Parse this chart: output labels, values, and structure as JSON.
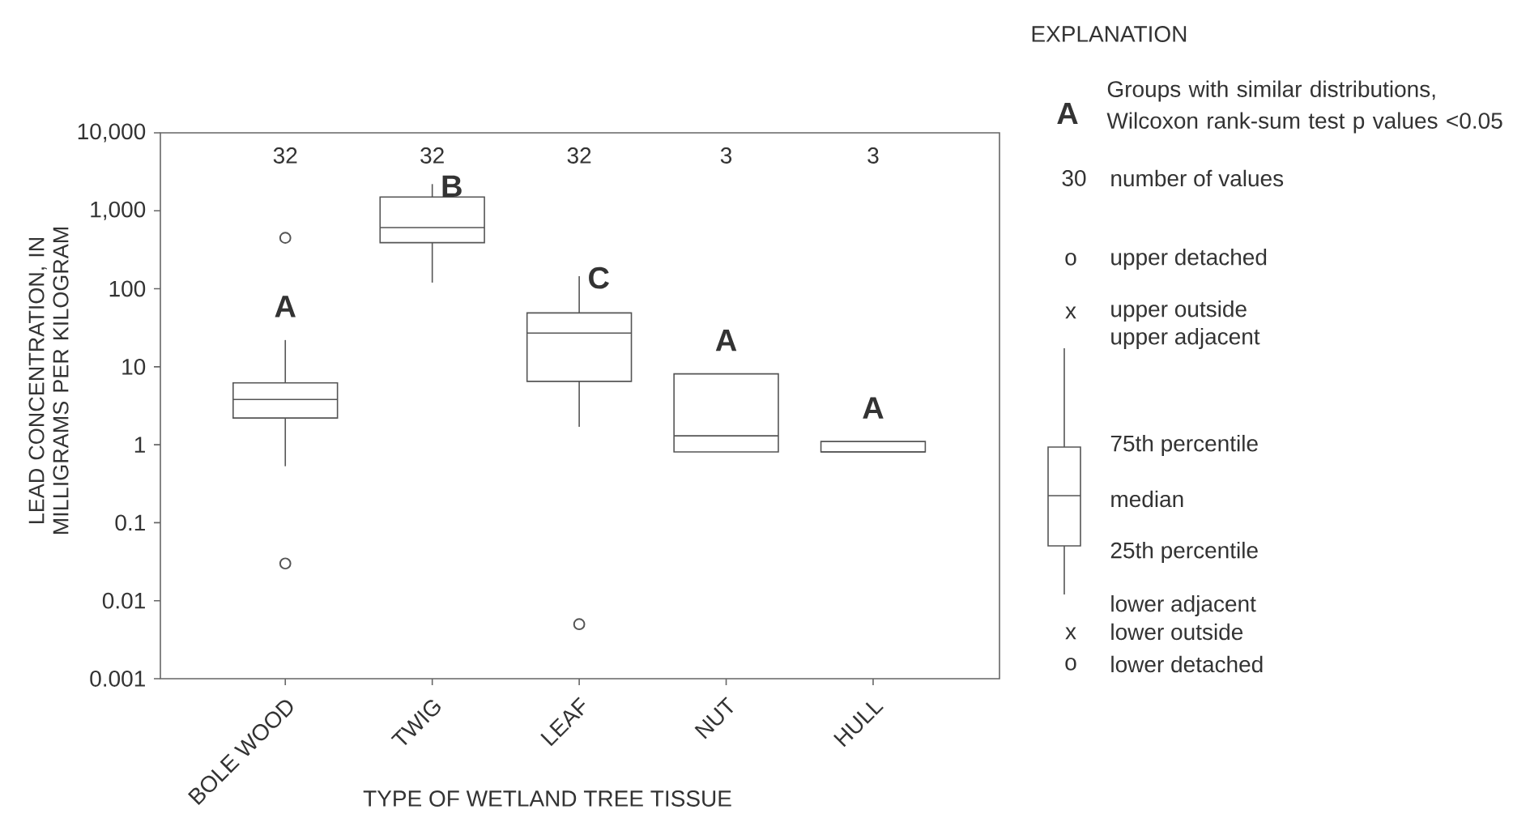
{
  "chart_data": {
    "type": "box",
    "xlabel": "TYPE OF WETLAND TREE TISSUE",
    "ylabel": "LEAD CONCENTRATION, IN MILLIGRAMS PER KILOGRAM",
    "categories": [
      "BOLE WOOD",
      "TWIG",
      "LEAF",
      "NUT",
      "HULL"
    ],
    "color": "#555555",
    "marker": "circle",
    "log": "y",
    "boxes": [
      {
        "low": 0.53,
        "q1": 2.2,
        "median": 3.8,
        "q3": 6.2,
        "high": 22,
        "outliers": [
          450,
          0.03
        ]
      },
      {
        "low": 120,
        "q1": 390,
        "median": 610,
        "q3": 1500,
        "high": 2200
      },
      {
        "low": 1.7,
        "q1": 6.5,
        "median": 27,
        "q3": 49,
        "high": 145,
        "outliers": [
          0.005
        ]
      },
      {
        "low": 0.81,
        "q1": 0.81,
        "median": 1.3,
        "q3": 8.1,
        "high": 8.1
      },
      {
        "low": 0.81,
        "q1": 0.81,
        "median": 0.81,
        "q3": 1.1,
        "high": 1.1
      }
    ],
    "ylim": [
      0.001,
      10000
    ],
    "yticks": [
      0.001,
      0.01,
      0.1,
      1,
      10,
      100,
      {
        "value": 1000,
        "label": "1,000"
      },
      {
        "value": 10000,
        "label": "10,000"
      }
    ],
    "annotations": [
      "32",
      "32",
      "32",
      "3",
      "3",
      "A",
      "B",
      "C",
      "A",
      "A",
      "EXPLANATION",
      "A",
      "Groups with similar distributions, Wilcoxon rank-sum test p values <0.05",
      "30",
      "number of values",
      "o",
      "upper detached",
      "x",
      "upper outside",
      "upper adjacent",
      "75th percentile",
      "median",
      "25th percentile",
      "lower adjacent",
      "x",
      "lower outside",
      "o",
      "lower detached"
    ]
  }
}
